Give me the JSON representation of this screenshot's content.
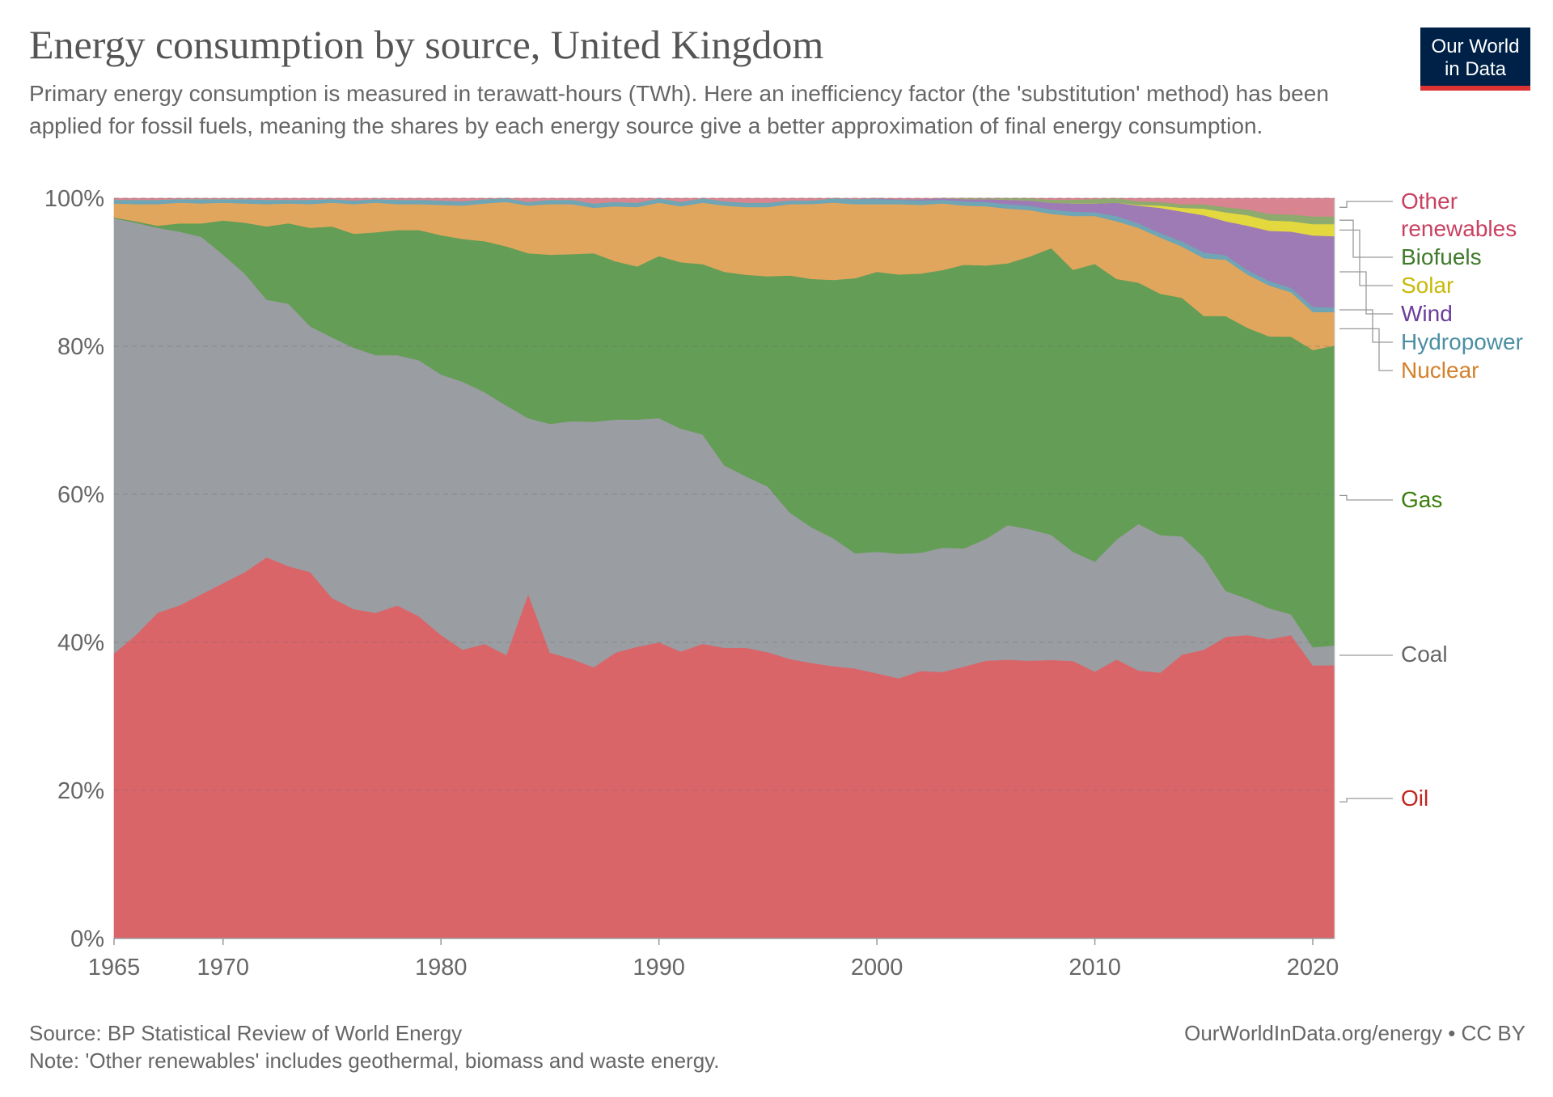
{
  "title": "Energy consumption by source, United Kingdom",
  "subtitle": "Primary energy consumption is measured in terawatt-hours (TWh). Here an inefficiency factor (the 'substitution' method) has been applied for fossil fuels, meaning the shares by each energy source give a better approximation of final energy consumption.",
  "logo": {
    "line1": "Our World",
    "line2": "in Data",
    "bg": "#002147",
    "accent": "#dc3232"
  },
  "footer": {
    "source": "Source: BP Statistical Review of World Energy",
    "note": "Note: 'Other renewables' includes geothermal, biomass and waste energy.",
    "url": "OurWorldInData.org/energy • CC BY"
  },
  "chart_data": {
    "type": "area",
    "stacked": true,
    "unit": "percent",
    "ylim": [
      0,
      100
    ],
    "yticks": [
      "0%",
      "20%",
      "40%",
      "60%",
      "80%",
      "100%"
    ],
    "yticks_values": [
      0,
      20,
      40,
      60,
      80,
      100
    ],
    "xlim": [
      1965,
      2021
    ],
    "xticks": [
      "1965",
      "1970",
      "1980",
      "1990",
      "2000",
      "2010",
      "2020"
    ],
    "xticks_values": [
      1965,
      1970,
      1980,
      1990,
      2000,
      2010,
      2020
    ],
    "grid": "horizontal dashed",
    "legend": "right, labels at series end",
    "x": [
      1965,
      1966,
      1967,
      1968,
      1969,
      1970,
      1971,
      1972,
      1973,
      1974,
      1975,
      1976,
      1977,
      1978,
      1979,
      1980,
      1981,
      1982,
      1983,
      1984,
      1985,
      1986,
      1987,
      1988,
      1989,
      1990,
      1991,
      1992,
      1993,
      1994,
      1995,
      1996,
      1997,
      1998,
      1999,
      2000,
      2001,
      2002,
      2003,
      2004,
      2005,
      2006,
      2007,
      2008,
      2009,
      2010,
      2011,
      2012,
      2013,
      2014,
      2015,
      2016,
      2017,
      2018,
      2019,
      2020,
      2021
    ],
    "series": [
      {
        "name": "Oil",
        "color": "#da6569",
        "label_color": "#c0261f",
        "values": [
          38.5,
          41,
          44,
          45,
          46.5,
          48,
          49.5,
          51.5,
          50.5,
          49.5,
          46,
          44.5,
          44,
          45,
          43.5,
          41,
          39,
          39.8,
          38.3,
          47,
          39,
          38,
          37,
          39,
          39.8,
          40,
          39,
          39.8,
          39.5,
          39.5,
          38.9,
          38,
          37.6,
          37,
          36.8,
          36,
          35.5,
          36.2,
          36,
          36.8,
          37.6,
          37.7,
          37.6,
          37.4,
          37.6,
          36.2,
          37.7,
          36.2,
          35.9,
          38.2,
          39,
          40.7,
          41,
          40.5,
          41,
          36,
          36
        ],
        "note": "Oil"
      },
      {
        "name": "Coal",
        "color": "#9a9da2",
        "label_color": "#666666",
        "values": [
          58.8,
          55.7,
          52,
          50.5,
          48.3,
          44.4,
          40.3,
          34.8,
          35.6,
          33.2,
          35.2,
          35.3,
          34.8,
          33.8,
          34.6,
          35.2,
          36.2,
          34,
          33.7,
          24,
          31.2,
          32.3,
          33.5,
          31.8,
          31,
          30.3,
          30.3,
          28.3,
          24.8,
          23.3,
          22.5,
          19.9,
          18.5,
          17.4,
          15.7,
          16.5,
          17,
          16,
          16.8,
          16,
          16.5,
          18.2,
          17.8,
          16.8,
          14.8,
          14.9,
          16.2,
          19.8,
          18.6,
          15.9,
          12.5,
          6.2,
          4.9,
          4.2,
          2.8,
          2.4,
          2.6
        ],
        "note": "Coal"
      },
      {
        "name": "Gas",
        "color": "#649d56",
        "label_color": "#3a7d0a",
        "values": [
          0.1,
          0.2,
          0.3,
          1.1,
          1.8,
          4.6,
          6.9,
          9.9,
          10.9,
          13.3,
          15,
          15.4,
          16.6,
          16.9,
          17.6,
          18.8,
          19.3,
          20.4,
          21.5,
          22.5,
          23.1,
          22.7,
          23,
          21.6,
          20.9,
          21.9,
          22.6,
          23,
          26.3,
          27.4,
          28.6,
          32.2,
          33.9,
          35.1,
          37.5,
          38,
          38.1,
          37.8,
          37.5,
          38.4,
          37,
          35.4,
          36.9,
          38.5,
          38.2,
          40.4,
          35.2,
          32.6,
          32.6,
          32.1,
          32.6,
          37.1,
          36.6,
          36.8,
          37.5,
          39.2,
          39.5
        ]
      },
      {
        "name": "Nuclear",
        "color": "#e1a65d",
        "label_color": "#d4802a",
        "values": [
          1.9,
          2.3,
          2.9,
          2.8,
          2.7,
          2.4,
          2.6,
          3.0,
          2.7,
          3.2,
          3.2,
          4.0,
          4.0,
          3.5,
          3.5,
          4.1,
          4.5,
          5.1,
          6.0,
          6.5,
          6.9,
          6.8,
          6.2,
          7.5,
          8.1,
          7.2,
          7.6,
          8.3,
          9.0,
          9.2,
          9.4,
          9.7,
          10.2,
          10.5,
          10.1,
          9.2,
          9.6,
          9.3,
          9.0,
          8.0,
          8.0,
          7.4,
          6.3,
          4.6,
          7.3,
          6.5,
          7.8,
          7.4,
          7.6,
          6.9,
          7.8,
          7.6,
          7.2,
          6.9,
          6.0,
          5.0,
          4.4
        ]
      },
      {
        "name": "Hydropower",
        "color": "#6fa5b5",
        "label_color": "#4b8fa3",
        "values": [
          0.5,
          0.6,
          0.6,
          0.5,
          0.6,
          0.5,
          0.6,
          0.6,
          0.5,
          0.6,
          0.5,
          0.5,
          0.5,
          0.6,
          0.6,
          0.6,
          0.6,
          0.6,
          0.5,
          0.5,
          0.6,
          0.6,
          0.6,
          0.6,
          0.6,
          0.6,
          0.6,
          0.6,
          0.6,
          0.6,
          0.6,
          0.5,
          0.5,
          0.6,
          0.7,
          0.7,
          0.6,
          0.6,
          0.5,
          0.6,
          0.6,
          0.6,
          0.6,
          0.6,
          0.6,
          0.5,
          0.7,
          0.6,
          0.6,
          0.7,
          0.8,
          0.6,
          0.6,
          0.6,
          0.6,
          0.7,
          0.6
        ]
      },
      {
        "name": "Wind",
        "color": "#9e7bb5",
        "label_color": "#6b3d9a",
        "values": [
          0,
          0,
          0,
          0,
          0,
          0,
          0,
          0,
          0,
          0,
          0,
          0,
          0,
          0,
          0,
          0,
          0,
          0,
          0,
          0,
          0,
          0,
          0,
          0,
          0,
          0,
          0,
          0,
          0,
          0,
          0,
          0,
          0,
          0,
          0,
          0.1,
          0.1,
          0.2,
          0.2,
          0.3,
          0.4,
          0.6,
          0.7,
          0.9,
          1.1,
          1.2,
          1.8,
          2.4,
          3.4,
          4.0,
          5.0,
          4.6,
          6.0,
          6.8,
          7.6,
          9.4,
          9.4
        ]
      },
      {
        "name": "Solar",
        "color": "#e3d93f",
        "label_color": "#c9b908",
        "values": [
          0,
          0,
          0,
          0,
          0,
          0,
          0,
          0,
          0,
          0,
          0,
          0,
          0,
          0,
          0,
          0,
          0,
          0,
          0,
          0,
          0,
          0,
          0,
          0,
          0,
          0,
          0,
          0,
          0,
          0,
          0,
          0,
          0,
          0,
          0,
          0,
          0,
          0,
          0,
          0,
          0,
          0,
          0,
          0,
          0,
          0,
          0,
          0.1,
          0.3,
          0.5,
          0.9,
          1.2,
          1.4,
          1.4,
          1.4,
          1.5,
          1.6
        ]
      },
      {
        "name": "Biofuels",
        "color": "#8eaa6f",
        "label_color": "#3f7a2a",
        "values": [
          0,
          0,
          0,
          0,
          0,
          0,
          0,
          0,
          0,
          0,
          0,
          0,
          0,
          0,
          0,
          0,
          0,
          0,
          0,
          0,
          0,
          0,
          0,
          0,
          0,
          0,
          0,
          0,
          0,
          0,
          0,
          0,
          0,
          0,
          0,
          0,
          0,
          0,
          0,
          0.1,
          0.1,
          0.2,
          0.3,
          0.4,
          0.5,
          0.6,
          0.6,
          0.5,
          0.5,
          0.5,
          0.6,
          0.7,
          0.8,
          0.9,
          0.9,
          1.0,
          1.0
        ]
      },
      {
        "name": "Other renewables",
        "color": "#d98491",
        "label_color": "#c94060",
        "values": [
          0.2,
          0.2,
          0.2,
          0.1,
          0.1,
          0.1,
          0.1,
          0.2,
          0.2,
          0.2,
          0.1,
          0.3,
          0.1,
          0.2,
          0.2,
          0.3,
          0.4,
          0.1,
          0,
          0.5,
          0.2,
          0.2,
          0.7,
          0.5,
          0.6,
          0,
          0.5,
          0,
          0.4,
          0.6,
          0.6,
          0.3,
          0.3,
          0,
          0.1,
          0,
          0.1,
          0.1,
          0,
          0,
          0,
          0,
          0,
          0.2,
          0.2,
          0.1,
          0,
          0.4,
          0.5,
          0.8,
          0.8,
          1.2,
          1.5,
          2.1,
          2.2,
          2.4,
          2.4
        ]
      }
    ]
  }
}
